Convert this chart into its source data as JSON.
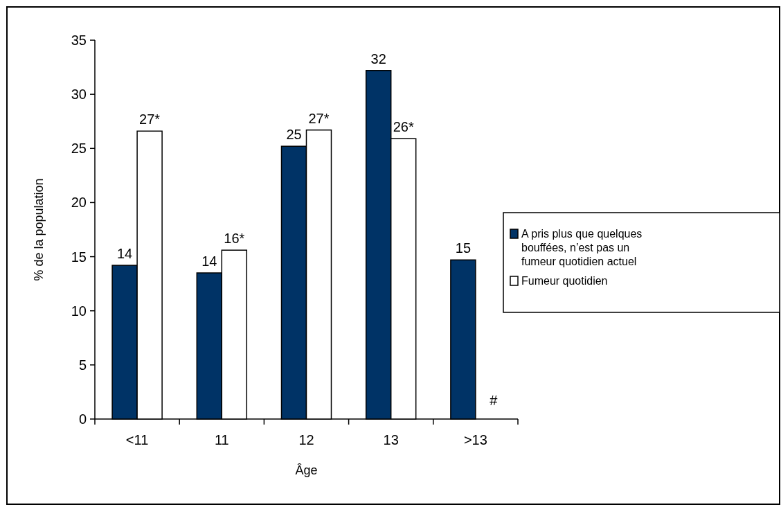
{
  "chart_data": {
    "type": "bar",
    "xlabel": "Âge",
    "ylabel": "% de la population",
    "categories": [
      "<11",
      "11",
      "12",
      "13",
      ">13"
    ],
    "series": [
      {
        "name": "A pris plus que quelques bouffées, n’est pas un fumeur quotidien actuel",
        "color": "#003366",
        "values": [
          14.2,
          13.5,
          25.2,
          32.2,
          14.7
        ],
        "value_labels": [
          "14",
          "14",
          "25",
          "32",
          "15"
        ]
      },
      {
        "name": "Fumeur quotidien",
        "color": "#ffffff",
        "values": [
          26.6,
          15.6,
          26.7,
          25.9,
          null
        ],
        "value_labels": [
          "27*",
          "16*",
          "27*",
          "26*",
          "#"
        ]
      }
    ],
    "ylim": [
      0,
      35
    ],
    "yticks": [
      0,
      5,
      10,
      15,
      20,
      25,
      30,
      35
    ],
    "grid": false,
    "legend": "right"
  }
}
